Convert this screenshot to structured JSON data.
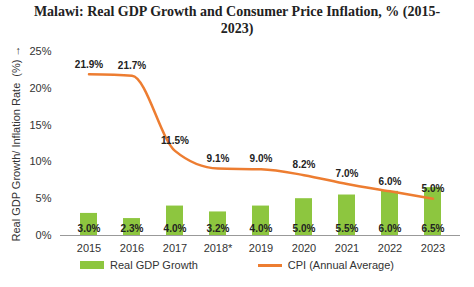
{
  "chart_data": {
    "type": "bar",
    "title": "Malawi: Real GDP Growth and Consumer Price Inflation, % (2015-2023)",
    "ylabel": "Real GDP Growth/ Inflation Rate  (%)",
    "categories": [
      "2015",
      "2016",
      "2017",
      "2018*",
      "2019",
      "2020",
      "2021",
      "2022",
      "2023"
    ],
    "series": [
      {
        "name": "Real GDP Growth",
        "type": "bar",
        "color": "#8dc63f",
        "values": [
          3.0,
          2.3,
          4.0,
          3.2,
          4.0,
          5.0,
          5.5,
          6.0,
          6.5
        ],
        "value_labels": [
          "3.0%",
          "2.3%",
          "4.0%",
          "3.2%",
          "4.0%",
          "5.0%",
          "5.5%",
          "6.0%",
          "6.5%"
        ]
      },
      {
        "name": "CPI (Annual Average)",
        "type": "line",
        "color": "#ed7d31",
        "values": [
          21.9,
          21.7,
          11.5,
          9.1,
          9.0,
          8.2,
          7.0,
          6.0,
          5.0
        ],
        "value_labels": [
          "21.9%",
          "21.7%",
          "11.5%",
          "9.1%",
          "9.0%",
          "8.2%",
          "7.0%",
          "6.0%",
          "5.0%"
        ]
      }
    ],
    "ylim": [
      0,
      25
    ],
    "yticks": [
      {
        "value": 0,
        "label": "0%"
      },
      {
        "value": 5,
        "label": "5%"
      },
      {
        "value": 10,
        "label": "10%"
      },
      {
        "value": 15,
        "label": "15%"
      },
      {
        "value": 20,
        "label": "20%"
      },
      {
        "value": 25,
        "label": "25%"
      }
    ],
    "grid": false,
    "data_labels": true,
    "legend": "bottom"
  }
}
